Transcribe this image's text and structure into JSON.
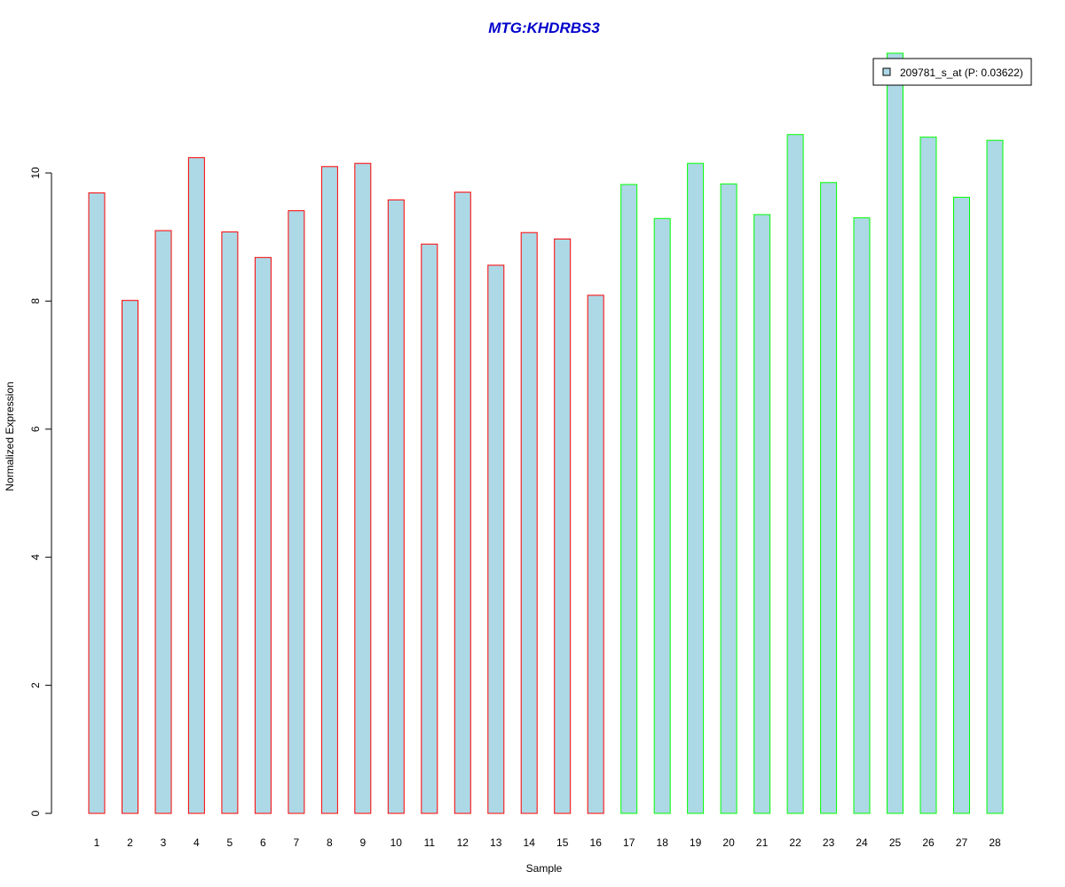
{
  "chart_data": {
    "type": "bar",
    "title": "MTG:KHDRBS3",
    "xlabel": "Sample",
    "ylabel": "Normalized Expression",
    "categories": [
      "1",
      "2",
      "3",
      "4",
      "5",
      "6",
      "7",
      "8",
      "9",
      "10",
      "11",
      "12",
      "13",
      "14",
      "15",
      "16",
      "17",
      "18",
      "19",
      "20",
      "21",
      "22",
      "23",
      "24",
      "25",
      "26",
      "27",
      "28"
    ],
    "series": [
      {
        "name": "209781_s_at (P: 0.03622)",
        "values": [
          9.69,
          8.01,
          9.1,
          10.24,
          9.08,
          8.68,
          9.41,
          10.1,
          10.15,
          9.58,
          8.89,
          9.7,
          8.56,
          9.07,
          8.97,
          8.09,
          9.82,
          9.29,
          10.15,
          9.83,
          9.35,
          10.6,
          9.85,
          9.3,
          11.87,
          10.56,
          9.62,
          10.51
        ]
      }
    ],
    "groups": [
      {
        "from": 1,
        "to": 16,
        "border_color": "#ff0000"
      },
      {
        "from": 17,
        "to": 28,
        "border_color": "#00ff00"
      }
    ],
    "ylim": [
      0,
      11.87
    ],
    "yticks": [
      0,
      2,
      4,
      6,
      8,
      10
    ],
    "grid": false,
    "legend_position": "top-right",
    "colors": {
      "bar_fill": "#add8e6",
      "title": "#0000cc",
      "axis": "#000000"
    }
  }
}
